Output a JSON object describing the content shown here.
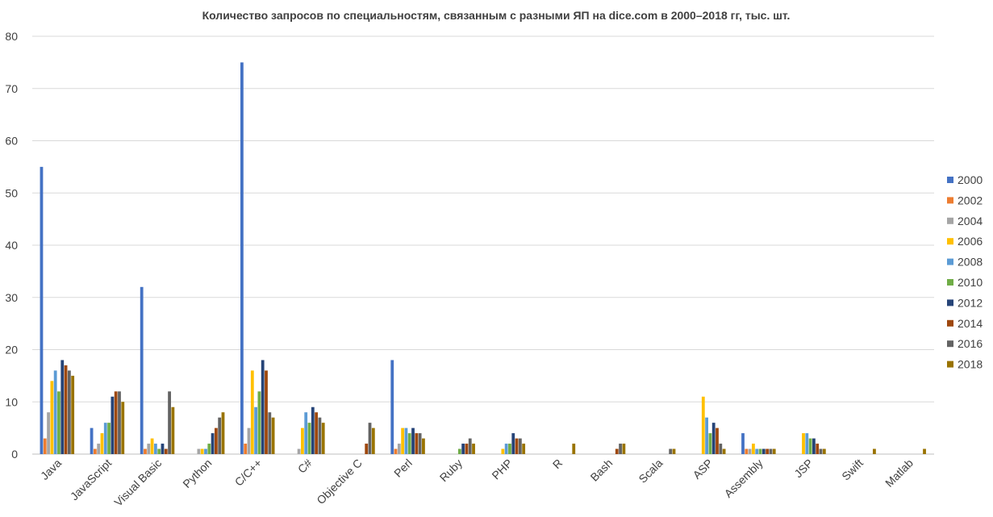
{
  "chart_data": {
    "type": "bar",
    "title": "Количество запросов по специальностям, связанным с разными ЯП на dice.com в 2000–2018 гг, тыс. шт.",
    "xlabel": "",
    "ylabel": "",
    "ylim": [
      0,
      80
    ],
    "yticks": [
      "0",
      "10",
      "20",
      "30",
      "40",
      "50",
      "60",
      "70",
      "80"
    ],
    "grid": true,
    "legend_position": "right",
    "categories": [
      "Java",
      "JavaScript",
      "Visual Basic",
      "Python",
      "C/C++",
      "C#",
      "Objective C",
      "Perl",
      "Ruby",
      "PHP",
      "R",
      "Bash",
      "Scala",
      "ASP",
      "Assembly",
      "JSP",
      "Swift",
      "Matlab"
    ],
    "series": [
      {
        "name": "2000",
        "color": "#4472C4",
        "values": [
          55,
          5,
          32,
          0,
          75,
          0,
          0,
          18,
          0,
          0,
          0,
          0,
          0,
          0,
          4,
          0,
          0,
          0
        ]
      },
      {
        "name": "2002",
        "color": "#ED7D31",
        "values": [
          3,
          1,
          1,
          0,
          2,
          0,
          0,
          1,
          0,
          0,
          0,
          0,
          0,
          0,
          1,
          0,
          0,
          0
        ]
      },
      {
        "name": "2004",
        "color": "#A5A5A5",
        "values": [
          8,
          2,
          2,
          1,
          5,
          1,
          0,
          2,
          0,
          0,
          0,
          0,
          0,
          0,
          1,
          0,
          0,
          0
        ]
      },
      {
        "name": "2006",
        "color": "#FFC000",
        "values": [
          14,
          4,
          3,
          1,
          16,
          5,
          0,
          5,
          0,
          1,
          0,
          0,
          0,
          11,
          2,
          4,
          0,
          0
        ]
      },
      {
        "name": "2008",
        "color": "#5B9BD5",
        "values": [
          16,
          6,
          2,
          1,
          9,
          8,
          0,
          5,
          0,
          2,
          0,
          0,
          0,
          7,
          1,
          4,
          0,
          0
        ]
      },
      {
        "name": "2010",
        "color": "#70AD47",
        "values": [
          12,
          6,
          1,
          2,
          12,
          6,
          0,
          4,
          1,
          2,
          0,
          0,
          0,
          4,
          1,
          3,
          0,
          0
        ]
      },
      {
        "name": "2012",
        "color": "#264478",
        "values": [
          18,
          11,
          2,
          4,
          18,
          9,
          0,
          5,
          2,
          4,
          0,
          0,
          0,
          6,
          1,
          3,
          0,
          0
        ]
      },
      {
        "name": "2014",
        "color": "#9E480E",
        "values": [
          17,
          12,
          1,
          5,
          16,
          8,
          2,
          4,
          2,
          3,
          0,
          1,
          0,
          5,
          1,
          2,
          0,
          0
        ]
      },
      {
        "name": "2016",
        "color": "#636363",
        "values": [
          16,
          12,
          12,
          7,
          8,
          7,
          6,
          4,
          3,
          3,
          0,
          2,
          1,
          2,
          1,
          1,
          0,
          0
        ]
      },
      {
        "name": "2018",
        "color": "#997300",
        "values": [
          15,
          10,
          9,
          8,
          7,
          6,
          5,
          3,
          2,
          2,
          2,
          2,
          1,
          1,
          1,
          1,
          1,
          1
        ]
      }
    ]
  }
}
